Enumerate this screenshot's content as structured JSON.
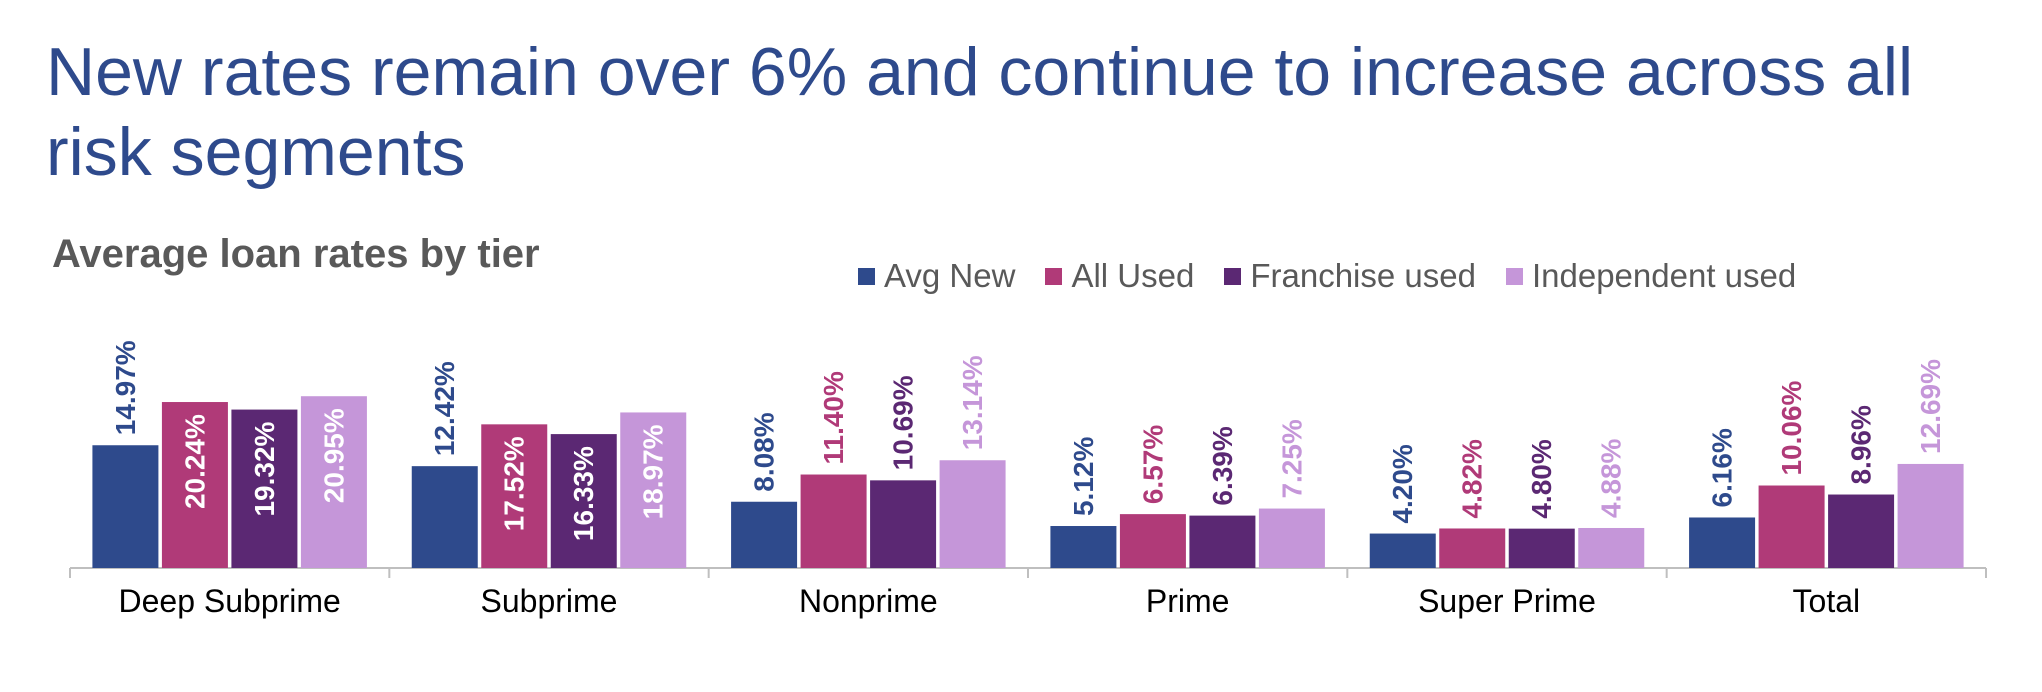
{
  "slide": {
    "title": "New rates remain over 6% and continue to increase across all risk segments"
  },
  "chart_data": {
    "type": "bar",
    "title": "Average loan rates by tier",
    "xlabel": "",
    "ylabel": "",
    "ylim": [
      0,
      24
    ],
    "grid": false,
    "legend_position": "top-right",
    "categories": [
      "Deep Subprime",
      "Subprime",
      "Nonprime",
      "Prime",
      "Super Prime",
      "Total"
    ],
    "series": [
      {
        "name": "Avg New",
        "color": "#2e4a8c",
        "values": [
          14.97,
          12.42,
          8.08,
          5.12,
          4.2,
          6.16
        ],
        "labels": [
          "14.97%",
          "12.42%",
          "8.08%",
          "5.12%",
          "4.20%",
          "6.16%"
        ]
      },
      {
        "name": "All Used",
        "color": "#b03a78",
        "values": [
          20.24,
          17.52,
          11.4,
          6.57,
          4.82,
          10.06
        ],
        "labels": [
          "20.24%",
          "17.52%",
          "11.40%",
          "6.57%",
          "4.82%",
          "10.06%"
        ]
      },
      {
        "name": "Franchise used",
        "color": "#5b2873",
        "values": [
          19.32,
          16.33,
          10.69,
          6.39,
          4.8,
          8.96
        ],
        "labels": [
          "19.32%",
          "16.33%",
          "10.69%",
          "6.39%",
          "4.80%",
          "8.96%"
        ]
      },
      {
        "name": "Independent used",
        "color": "#c596d9",
        "values": [
          20.95,
          18.97,
          13.14,
          7.25,
          4.88,
          12.69
        ],
        "labels": [
          "20.95%",
          "18.97%",
          "13.14%",
          "7.25%",
          "4.88%",
          "12.69%"
        ]
      }
    ],
    "label_color_inside": "#ffffff"
  }
}
